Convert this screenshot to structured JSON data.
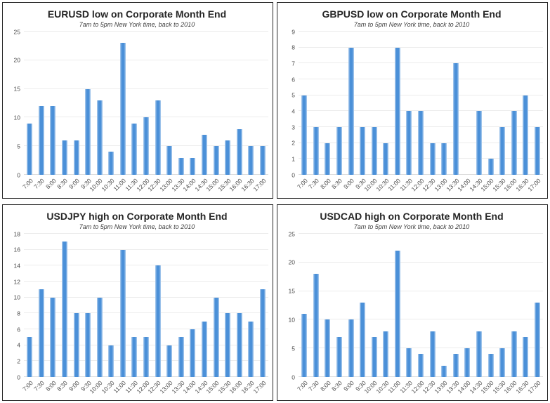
{
  "colors": {
    "bar_fill": "#4b90d8",
    "bar_edge": "#9cc2ea",
    "gridline": "#ececec",
    "baseline": "#dcdcdc",
    "panel_border": "#262626",
    "title_text": "#262626",
    "subtitle_text": "#3f3f3f",
    "axis_text": "#4a4a4a",
    "background": "#ffffff"
  },
  "chart_data": [
    {
      "type": "bar",
      "title": "EURUSD low on Corporate Month End",
      "subtitle": "7am to 5pm New York time, back to 2010",
      "categories": [
        "7:00",
        "7:30",
        "8:00",
        "8:30",
        "9:00",
        "9:30",
        "10:00",
        "10:30",
        "11:00",
        "11:30",
        "12:00",
        "12:30",
        "13:00",
        "13:30",
        "14:00",
        "14:30",
        "15:00",
        "15:30",
        "16:00",
        "16:30",
        "17:00"
      ],
      "values": [
        9,
        12,
        12,
        6,
        6,
        15,
        13,
        4,
        23,
        9,
        10,
        13,
        5,
        3,
        3,
        7,
        5,
        6,
        8,
        5,
        5
      ],
      "xlabel": "",
      "ylabel": "",
      "ylim": [
        0,
        25
      ],
      "ytick_step": 5,
      "grid": true,
      "legend": false
    },
    {
      "type": "bar",
      "title": "GBPUSD low on Corporate Month End",
      "subtitle": "7am to 5pm New York time, back to 2010",
      "categories": [
        "7:00",
        "7:30",
        "8:00",
        "8:30",
        "9:00",
        "9:30",
        "10:00",
        "10:30",
        "11:00",
        "11:30",
        "12:00",
        "12:30",
        "13:00",
        "13:30",
        "14:00",
        "14:30",
        "15:00",
        "15:30",
        "16:00",
        "16:30",
        "17:00"
      ],
      "values": [
        5,
        3,
        2,
        3,
        8,
        3,
        3,
        2,
        8,
        4,
        4,
        2,
        2,
        7,
        0,
        4,
        1,
        3,
        4,
        5,
        3
      ],
      "xlabel": "",
      "ylabel": "",
      "ylim": [
        0,
        9
      ],
      "ytick_step": 1,
      "grid": true,
      "legend": false
    },
    {
      "type": "bar",
      "title": "USDJPY high on Corporate Month End",
      "subtitle": "7am to 5pm New York time, back to 2010",
      "categories": [
        "7:00",
        "7:30",
        "8:00",
        "8:30",
        "9:00",
        "9:30",
        "10:00",
        "10:30",
        "11:00",
        "11:30",
        "12:00",
        "12:30",
        "13:00",
        "13:30",
        "14:00",
        "14:30",
        "15:00",
        "15:30",
        "16:00",
        "16:30",
        "17:00"
      ],
      "values": [
        5,
        11,
        10,
        17,
        8,
        8,
        10,
        4,
        16,
        5,
        5,
        14,
        4,
        5,
        6,
        7,
        10,
        8,
        8,
        7,
        11
      ],
      "xlabel": "",
      "ylabel": "",
      "ylim": [
        0,
        18
      ],
      "ytick_step": 2,
      "grid": true,
      "legend": false
    },
    {
      "type": "bar",
      "title": "USDCAD high on Corporate Month End",
      "subtitle": "7am to 5pm New York time, back to 2010",
      "categories": [
        "7:00",
        "7:30",
        "8:00",
        "8:30",
        "9:00",
        "9:30",
        "10:00",
        "10:30",
        "11:00",
        "11:30",
        "12:00",
        "12:30",
        "13:00",
        "13:30",
        "14:00",
        "14:30",
        "15:00",
        "15:30",
        "16:00",
        "16:30",
        "17:00"
      ],
      "values": [
        11,
        18,
        10,
        7,
        10,
        13,
        7,
        8,
        22,
        5,
        4,
        8,
        2,
        4,
        5,
        8,
        4,
        5,
        8,
        7,
        13
      ],
      "xlabel": "",
      "ylabel": "",
      "ylim": [
        0,
        25
      ],
      "ytick_step": 5,
      "grid": true,
      "legend": false
    }
  ]
}
